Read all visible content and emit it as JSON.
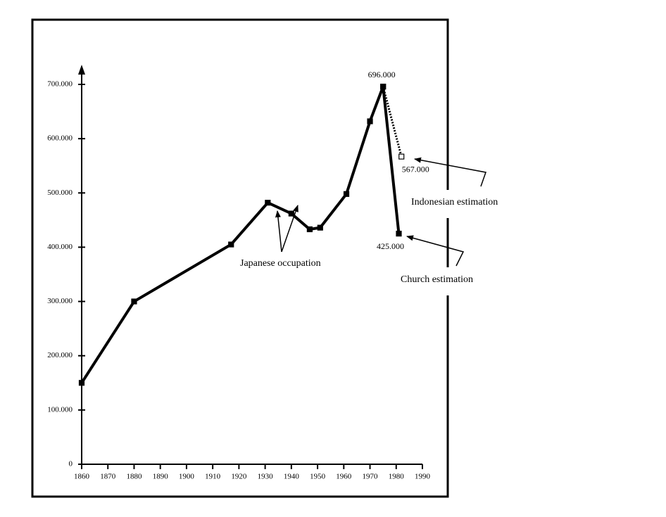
{
  "chart_data": {
    "type": "line",
    "series": [
      {
        "x": [
          1860,
          1880,
          1917,
          1931,
          1940,
          1947,
          1951,
          1961,
          1970,
          1975,
          1981
        ],
        "values": [
          150000,
          300000,
          405000,
          482000,
          462000,
          433000,
          436000,
          498000,
          632000,
          696000,
          425000
        ],
        "value_labels": [
          null,
          null,
          null,
          null,
          null,
          null,
          null,
          null,
          null,
          "696.000",
          "425.000"
        ],
        "color": "#000000",
        "dash": "solid",
        "marker": "filled"
      },
      {
        "x": [
          1975,
          1982
        ],
        "values": [
          696000,
          567000
        ],
        "value_labels": [
          null,
          "567.000"
        ],
        "color": "#000000",
        "dash": "dotted",
        "marker": "open"
      }
    ],
    "annotations": [
      "Japanese occupation",
      "Indonesian estimation",
      "Church estimation"
    ],
    "xlim": [
      1860,
      1990
    ],
    "xticks": [
      1860,
      1870,
      1880,
      1890,
      1900,
      1910,
      1920,
      1930,
      1940,
      1950,
      1960,
      1970,
      1980,
      1990
    ],
    "ylim": [
      0,
      700000
    ],
    "yticks": [
      0,
      {
        "value": 100000,
        "label": "100.000"
      },
      {
        "value": 200000,
        "label": "200.000"
      },
      {
        "value": 300000,
        "label": "300.000"
      },
      {
        "value": 400000,
        "label": "400.000"
      },
      {
        "value": 500000,
        "label": "500.000"
      },
      {
        "value": 600000,
        "label": "600.000"
      },
      {
        "value": 700000,
        "label": "700.000"
      }
    ]
  }
}
